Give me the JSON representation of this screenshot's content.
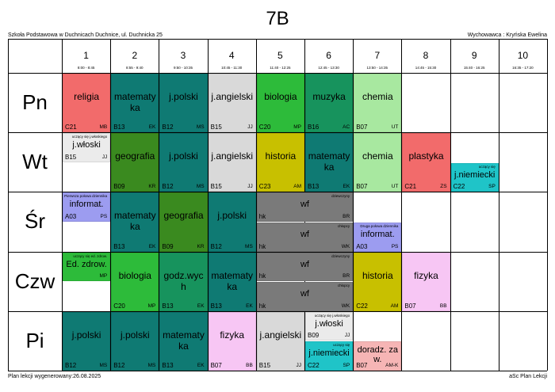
{
  "title": "7B",
  "school": "Szkoła Podstawowa w Duchnicach Duchnice, ul. Duchnicka 25",
  "homeroom": "Wychowawca : Kryńska Ewelina",
  "footer_left": "Plan lekcji wygenerowany:26.08.2025",
  "footer_right": "aSc Plan Lekcji",
  "periods": [
    {
      "n": "1",
      "t": "8:00 - 8:45"
    },
    {
      "n": "2",
      "t": "8:55 - 9:40"
    },
    {
      "n": "3",
      "t": "9:50 - 10:35"
    },
    {
      "n": "4",
      "t": "10:45 - 11:30"
    },
    {
      "n": "5",
      "t": "11:40 - 12:25"
    },
    {
      "n": "6",
      "t": "12:45 - 13:30"
    },
    {
      "n": "7",
      "t": "13:50 - 14:35"
    },
    {
      "n": "8",
      "t": "14:45 - 15:30"
    },
    {
      "n": "9",
      "t": "15:40 - 16:25"
    },
    {
      "n": "10",
      "t": "16:35 - 17:20"
    }
  ],
  "days": [
    "Pn",
    "Wt",
    "Śr",
    "Czw",
    "Pi"
  ],
  "colors": {
    "religia": "#f26b6b",
    "matematyka": "#0f7a73",
    "polski": "#0f7a73",
    "angielski": "#d9d9d9",
    "biologia": "#2dbb3a",
    "muzyka": "#17935d",
    "chemia": "#a8e8a0",
    "wloski": "#ebebeb",
    "geografia": "#3a8a1f",
    "historia": "#c8c000",
    "plastyka": "#f26b6b",
    "niemiecki": "#1fc4c8",
    "informatyka": "#9c9cf0",
    "wf": "#7a7a7a",
    "edzdrow": "#2dbb3a",
    "godzwych": "#17935d",
    "fizyka": "#f7c6f4",
    "doradz": "#f6b5b5"
  },
  "lessons": [
    {
      "id": "pn-1",
      "day": 0,
      "p": 0,
      "span": 1,
      "r0": 0,
      "r1": 1,
      "subj": "religia",
      "room": "C21",
      "teach": "MB",
      "c": "religia",
      "note": ""
    },
    {
      "id": "pn-2",
      "day": 0,
      "p": 1,
      "span": 1,
      "r0": 0,
      "r1": 1,
      "subj": "matematyka",
      "room": "B13",
      "teach": "EK",
      "c": "matematyka",
      "note": ""
    },
    {
      "id": "pn-3",
      "day": 0,
      "p": 2,
      "span": 1,
      "r0": 0,
      "r1": 1,
      "subj": "j.polski",
      "room": "B12",
      "teach": "MS",
      "c": "polski",
      "note": ""
    },
    {
      "id": "pn-4",
      "day": 0,
      "p": 3,
      "span": 1,
      "r0": 0,
      "r1": 1,
      "subj": "j.angielski",
      "room": "B15",
      "teach": "JJ",
      "c": "angielski",
      "note": ""
    },
    {
      "id": "pn-5",
      "day": 0,
      "p": 4,
      "span": 1,
      "r0": 0,
      "r1": 1,
      "subj": "biologia",
      "room": "C20",
      "teach": "MP",
      "c": "biologia",
      "note": ""
    },
    {
      "id": "pn-6",
      "day": 0,
      "p": 5,
      "span": 1,
      "r0": 0,
      "r1": 1,
      "subj": "muzyka",
      "room": "B16",
      "teach": "AC",
      "c": "muzyka",
      "note": ""
    },
    {
      "id": "pn-7",
      "day": 0,
      "p": 6,
      "span": 1,
      "r0": 0,
      "r1": 1,
      "subj": "chemia",
      "room": "B07",
      "teach": "UT",
      "c": "chemia",
      "note": ""
    },
    {
      "id": "wt-1",
      "day": 1,
      "p": 0,
      "span": 1,
      "r0": 0,
      "r1": 0.5,
      "subj": "j.włoski",
      "room": "B15",
      "teach": "JJ",
      "c": "wloski",
      "note": "uczący się j.włoskiego"
    },
    {
      "id": "wt-2",
      "day": 1,
      "p": 1,
      "span": 1,
      "r0": 0,
      "r1": 1,
      "subj": "geografia",
      "room": "B09",
      "teach": "KR",
      "c": "geografia",
      "note": ""
    },
    {
      "id": "wt-3",
      "day": 1,
      "p": 2,
      "span": 1,
      "r0": 0,
      "r1": 1,
      "subj": "j.polski",
      "room": "B12",
      "teach": "MS",
      "c": "polski",
      "note": ""
    },
    {
      "id": "wt-4",
      "day": 1,
      "p": 3,
      "span": 1,
      "r0": 0,
      "r1": 1,
      "subj": "j.angielski",
      "room": "B15",
      "teach": "JJ",
      "c": "angielski",
      "note": ""
    },
    {
      "id": "wt-5",
      "day": 1,
      "p": 4,
      "span": 1,
      "r0": 0,
      "r1": 1,
      "subj": "historia",
      "room": "C23",
      "teach": "AM",
      "c": "historia",
      "note": ""
    },
    {
      "id": "wt-6",
      "day": 1,
      "p": 5,
      "span": 1,
      "r0": 0,
      "r1": 1,
      "subj": "matematyka",
      "room": "B13",
      "teach": "EK",
      "c": "matematyka",
      "note": ""
    },
    {
      "id": "wt-7",
      "day": 1,
      "p": 6,
      "span": 1,
      "r0": 0,
      "r1": 1,
      "subj": "chemia",
      "room": "B07",
      "teach": "UT",
      "c": "chemia",
      "note": ""
    },
    {
      "id": "wt-8",
      "day": 1,
      "p": 7,
      "span": 1,
      "r0": 0,
      "r1": 1,
      "subj": "plastyka",
      "room": "C21",
      "teach": "ZS",
      "c": "plastyka",
      "note": ""
    },
    {
      "id": "wt-9",
      "day": 1,
      "p": 8,
      "span": 1,
      "r0": 0.5,
      "r1": 1,
      "subj": "j.niemiecki",
      "room": "C22",
      "teach": "SP",
      "c": "niemiecki",
      "note": "uczący się"
    },
    {
      "id": "sr-1",
      "day": 2,
      "p": 0,
      "span": 1,
      "r0": 0,
      "r1": 0.5,
      "subj": "informat.",
      "room": "A03",
      "teach": "PS",
      "c": "informatyka",
      "note": "Pierwsza połowa dziennika"
    },
    {
      "id": "sr-2",
      "day": 2,
      "p": 1,
      "span": 1,
      "r0": 0,
      "r1": 1,
      "subj": "matematyka",
      "room": "B13",
      "teach": "EK",
      "c": "matematyka",
      "note": ""
    },
    {
      "id": "sr-3",
      "day": 2,
      "p": 2,
      "span": 1,
      "r0": 0,
      "r1": 1,
      "subj": "geografia",
      "room": "B09",
      "teach": "KR",
      "c": "geografia",
      "note": ""
    },
    {
      "id": "sr-4",
      "day": 2,
      "p": 3,
      "span": 1,
      "r0": 0,
      "r1": 1,
      "subj": "j.polski",
      "room": "B12",
      "teach": "MS",
      "c": "polski",
      "note": ""
    },
    {
      "id": "sr-5a",
      "day": 2,
      "p": 4,
      "span": 2,
      "r0": 0,
      "r1": 0.5,
      "subj": "wf",
      "room": "hk",
      "teach": "BR",
      "c": "wf",
      "note": "dziewczyny"
    },
    {
      "id": "sr-5b",
      "day": 2,
      "p": 4,
      "span": 2,
      "r0": 0.5,
      "r1": 1,
      "subj": "wf",
      "room": "hk",
      "teach": "WK",
      "c": "wf",
      "note": "chłopcy"
    },
    {
      "id": "sr-7",
      "day": 2,
      "p": 6,
      "span": 1,
      "r0": 0.5,
      "r1": 1,
      "subj": "informat.",
      "room": "A03",
      "teach": "PS",
      "c": "informatyka",
      "note": "Druga połowa dziennika"
    },
    {
      "id": "czw-1",
      "day": 3,
      "p": 0,
      "span": 1,
      "r0": 0,
      "r1": 0.5,
      "subj": "Ed. zdrow.",
      "room": "",
      "teach": "MP",
      "c": "edzdrow",
      "note": "uczący się ed. zdrow."
    },
    {
      "id": "czw-2",
      "day": 3,
      "p": 1,
      "span": 1,
      "r0": 0,
      "r1": 1,
      "subj": "biologia",
      "room": "C20",
      "teach": "MP",
      "c": "biologia",
      "note": ""
    },
    {
      "id": "czw-3",
      "day": 3,
      "p": 2,
      "span": 1,
      "r0": 0,
      "r1": 1,
      "subj": "godz.wych",
      "room": "B13",
      "teach": "EK",
      "c": "godzwych",
      "note": ""
    },
    {
      "id": "czw-4",
      "day": 3,
      "p": 3,
      "span": 1,
      "r0": 0,
      "r1": 1,
      "subj": "matematyka",
      "room": "B13",
      "teach": "EK",
      "c": "matematyka",
      "note": ""
    },
    {
      "id": "czw-5a",
      "day": 3,
      "p": 4,
      "span": 2,
      "r0": 0,
      "r1": 0.5,
      "subj": "wf",
      "room": "hk",
      "teach": "BR",
      "c": "wf",
      "note": "dziewczyny"
    },
    {
      "id": "czw-5b",
      "day": 3,
      "p": 4,
      "span": 2,
      "r0": 0.5,
      "r1": 1,
      "subj": "wf",
      "room": "hk",
      "teach": "WK",
      "c": "wf",
      "note": "chłopcy"
    },
    {
      "id": "czw-7",
      "day": 3,
      "p": 6,
      "span": 1,
      "r0": 0,
      "r1": 1,
      "subj": "historia",
      "room": "C22",
      "teach": "AM",
      "c": "historia",
      "note": ""
    },
    {
      "id": "czw-8",
      "day": 3,
      "p": 7,
      "span": 1,
      "r0": 0,
      "r1": 1,
      "subj": "fizyka",
      "room": "B07",
      "teach": "BB",
      "c": "fizyka",
      "note": ""
    },
    {
      "id": "pi-1",
      "day": 4,
      "p": 0,
      "span": 1,
      "r0": 0,
      "r1": 1,
      "subj": "j.polski",
      "room": "B12",
      "teach": "MS",
      "c": "polski",
      "note": ""
    },
    {
      "id": "pi-2",
      "day": 4,
      "p": 1,
      "span": 1,
      "r0": 0,
      "r1": 1,
      "subj": "j.polski",
      "room": "B12",
      "teach": "MS",
      "c": "polski",
      "note": ""
    },
    {
      "id": "pi-3",
      "day": 4,
      "p": 2,
      "span": 1,
      "r0": 0,
      "r1": 1,
      "subj": "matematyka",
      "room": "B13",
      "teach": "EK",
      "c": "matematyka",
      "note": ""
    },
    {
      "id": "pi-4",
      "day": 4,
      "p": 3,
      "span": 1,
      "r0": 0,
      "r1": 1,
      "subj": "fizyka",
      "room": "B07",
      "teach": "BB",
      "c": "fizyka",
      "note": ""
    },
    {
      "id": "pi-5",
      "day": 4,
      "p": 4,
      "span": 1,
      "r0": 0,
      "r1": 1,
      "subj": "j.angielski",
      "room": "B15",
      "teach": "JJ",
      "c": "angielski",
      "note": ""
    },
    {
      "id": "pi-6a",
      "day": 4,
      "p": 5,
      "span": 1,
      "r0": 0,
      "r1": 0.5,
      "subj": "j.włoski",
      "room": "B09",
      "teach": "JJ",
      "c": "wloski",
      "note": "uczący się j.włoskiego"
    },
    {
      "id": "pi-6b",
      "day": 4,
      "p": 5,
      "span": 1,
      "r0": 0.5,
      "r1": 1,
      "subj": "j.niemiecki",
      "room": "C22",
      "teach": "SP",
      "c": "niemiecki",
      "note": "uczący się"
    },
    {
      "id": "pi-7",
      "day": 4,
      "p": 6,
      "span": 1,
      "r0": 0.5,
      "r1": 1,
      "subj": "doradz. zaw.",
      "room": "B07",
      "teach": "AM-K",
      "c": "doradz",
      "note": ""
    }
  ]
}
